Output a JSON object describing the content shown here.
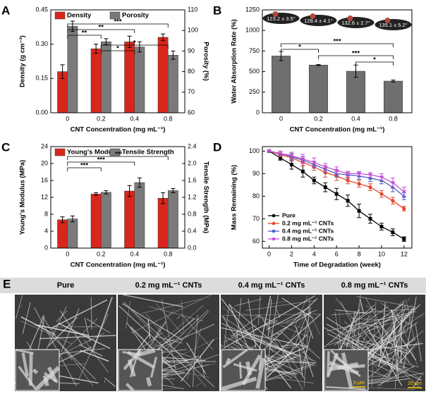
{
  "chart_data": [
    {
      "type": "bar",
      "label": "A",
      "xlabel": "CNT Concentration (mg mL⁻¹)",
      "ylabel": "Density (g cm⁻³)",
      "y2label": "Porosity (%)",
      "categories": [
        "0",
        "0.2",
        "0.4",
        "0.8"
      ],
      "series": [
        {
          "name": "Density",
          "color": "#d9261c",
          "values": [
            0.18,
            0.28,
            0.31,
            0.33
          ],
          "errors": [
            0.03,
            0.02,
            0.025,
            0.015
          ]
        },
        {
          "name": "Porosity",
          "color": "#7a7a7a",
          "axis": "y2",
          "values": [
            102,
            94.5,
            92,
            88
          ],
          "errors": [
            2.5,
            1.5,
            2.5,
            2
          ]
        }
      ],
      "ylim": [
        0,
        0.45
      ],
      "yticks": [
        {
          "value": 0,
          "label": "0.00"
        },
        0.15,
        {
          "value": 0.3,
          "label": "0.30"
        },
        0.45
      ],
      "y2lim": [
        60,
        110
      ],
      "y2ticks": [
        60,
        70,
        80,
        90,
        100,
        110
      ],
      "significance": [
        "**",
        "**",
        "***",
        "*",
        "*"
      ],
      "legend": "upper left"
    },
    {
      "type": "bar",
      "label": "B",
      "xlabel": "CNT Concentration (mg mL⁻¹)",
      "ylabel": "Water Absorption Rate (%)",
      "categories": [
        "0",
        "0.2",
        "0.4",
        "0.8"
      ],
      "series": [
        {
          "color": "#6f6f6f",
          "values": [
            690,
            580,
            505,
            385
          ],
          "errors": [
            55,
            5,
            75,
            12
          ]
        }
      ],
      "ylim": [
        0,
        1250
      ],
      "yticks": [
        0,
        250,
        500,
        750,
        1000,
        1250
      ],
      "contact_angles": [
        "123.2 ± 3.5°",
        "128.4 ± 4.1°",
        "132.6 ± 2.7°",
        "135.1 ± 5.2°"
      ],
      "significance": [
        "***",
        "*",
        "***",
        "*"
      ]
    },
    {
      "type": "bar",
      "label": "C",
      "xlabel": "CNT Concentration (mg mL⁻¹)",
      "ylabel": "Young's Modulus (MPa)",
      "y2label": "Tensile Strength (MPa)",
      "categories": [
        "0",
        "0.2",
        "0.4",
        "0.8"
      ],
      "series": [
        {
          "name": "Young's Modulus",
          "color": "#d9261c",
          "values": [
            6.7,
            12.8,
            13.5,
            11.8
          ],
          "errors": [
            0.7,
            0.3,
            1.3,
            1.3
          ]
        },
        {
          "name": "Tensile Strength",
          "color": "#7a7a7a",
          "axis": "y2",
          "values": [
            0.69,
            1.32,
            1.55,
            1.36
          ],
          "errors": [
            0.07,
            0.04,
            0.11,
            0.05
          ]
        }
      ],
      "ylim": [
        0,
        24
      ],
      "yticks": [
        0,
        4,
        8,
        12,
        16,
        20,
        24
      ],
      "y2lim": [
        0,
        2.4
      ],
      "y2ticks": [
        {
          "value": 0,
          "label": "0.0"
        },
        0.4,
        0.8,
        1.2,
        1.6,
        {
          "value": 2,
          "label": "2.0"
        },
        2.4
      ],
      "significance": [
        "***",
        "***",
        "**"
      ],
      "legend": "upper left"
    },
    {
      "type": "line",
      "label": "D",
      "xlabel": "Time of Degradation (week)",
      "ylabel": "Mass Remaining (%)",
      "x": [
        0,
        1,
        2,
        3,
        4,
        5,
        6,
        7,
        8,
        9,
        10,
        11,
        12
      ],
      "series": [
        {
          "name": "Pure",
          "color": "#000000",
          "marker": "square",
          "values": [
            100,
            97,
            94,
            91,
            87,
            84,
            81,
            78,
            73.5,
            70,
            66.5,
            64,
            61
          ],
          "errors": [
            0,
            1,
            2,
            2.5,
            1.5,
            2,
            2.5,
            2.5,
            3,
            2,
            1.5,
            1.5,
            1
          ]
        },
        {
          "name": "0.2 mg mL⁻¹ CNTs",
          "color": "#e8452c",
          "marker": "circle",
          "values": [
            100,
            98.5,
            97,
            95,
            93,
            90.5,
            89,
            87,
            85.5,
            84,
            81,
            78,
            74.5
          ],
          "errors": [
            0,
            1,
            1.5,
            1.5,
            1.5,
            2,
            2,
            1.5,
            1.5,
            1.5,
            1.5,
            1.5,
            1
          ]
        },
        {
          "name": "0.4 mg mL⁻¹ CNTs",
          "color": "#4a5cc0",
          "marker": "triangle",
          "values": [
            100,
            99,
            97.5,
            96,
            94,
            92,
            90,
            89.5,
            89,
            88,
            87,
            84,
            80
          ],
          "errors": [
            0,
            1,
            1.5,
            1.5,
            1.5,
            1.5,
            1.5,
            1.5,
            1.5,
            1.5,
            1.5,
            2,
            1.5
          ]
        },
        {
          "name": "0.8 mg mL⁻¹ CNTs",
          "color": "#c44fd6",
          "marker": "triangle-down",
          "values": [
            100,
            99,
            98,
            96.5,
            95,
            93,
            91.5,
            90,
            90,
            89.5,
            88.5,
            86,
            82
          ],
          "errors": [
            0,
            1,
            1.5,
            2,
            2,
            1.5,
            1.5,
            1,
            1,
            1,
            1.5,
            2,
            2
          ]
        }
      ],
      "xlim": [
        -0.6,
        12.7
      ],
      "xticks": [
        0,
        2,
        4,
        6,
        8,
        10,
        12
      ],
      "ylim": [
        57,
        102
      ],
      "yticks": [
        60,
        70,
        80,
        90,
        100
      ],
      "legend": "lower left"
    }
  ],
  "sem": {
    "label": "E",
    "columns": [
      "Pure",
      "0.2 mg mL⁻¹ CNTs",
      "0.4 mg mL⁻¹ CNTs",
      "0.8 mg mL⁻¹ CNTs"
    ],
    "scale_bars": [
      "5 μm",
      "20 μm"
    ]
  }
}
